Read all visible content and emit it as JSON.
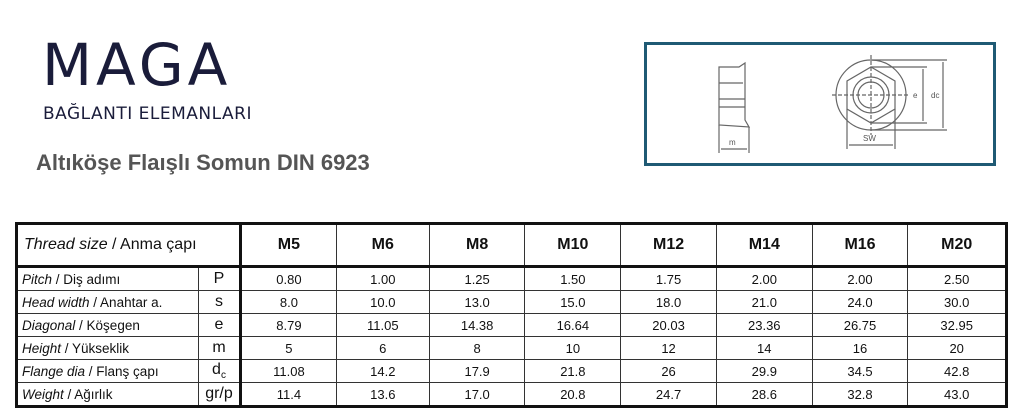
{
  "brand": {
    "name": "MAGA",
    "tagline": "BAĞLANTI ELEMANLARI",
    "brand_color": "#1a1c3a"
  },
  "product_title": "Altıköşe Flaışlı Somun DIN 6923",
  "drawing": {
    "labels": {
      "m": "m",
      "sw": "SW",
      "e": "e",
      "dc": "dc"
    },
    "frame_color": "#1f5a74"
  },
  "table": {
    "header": {
      "label_en": "Thread size",
      "label_tr": " / Anma çapı",
      "sizes": [
        "M5",
        "M6",
        "M8",
        "M10",
        "M12",
        "M14",
        "M16",
        "M20"
      ]
    },
    "rows": [
      {
        "en": "Pitch",
        "tr": " / Diş adımı",
        "sym": "P",
        "values": [
          "0.80",
          "1.00",
          "1.25",
          "1.50",
          "1.75",
          "2.00",
          "2.00",
          "2.50"
        ]
      },
      {
        "en": "Head width",
        "tr": " / Anahtar a.",
        "sym": "s",
        "values": [
          "8.0",
          "10.0",
          "13.0",
          "15.0",
          "18.0",
          "21.0",
          "24.0",
          "30.0"
        ]
      },
      {
        "en": "Diagonal",
        "tr": " / Köşegen",
        "sym": "e",
        "values": [
          "8.79",
          "11.05",
          "14.38",
          "16.64",
          "20.03",
          "23.36",
          "26.75",
          "32.95"
        ]
      },
      {
        "en": "Height",
        "tr": " / Yükseklik",
        "sym": "m",
        "values": [
          "5",
          "6",
          "8",
          "10",
          "12",
          "14",
          "16",
          "20"
        ]
      },
      {
        "en": "Flange dia",
        "tr": " / Flanş çapı",
        "sym": "dc",
        "values": [
          "11.08",
          "14.2",
          "17.9",
          "21.8",
          "26",
          "29.9",
          "34.5",
          "42.8"
        ]
      },
      {
        "en": "Weight",
        "tr": " / Ağırlık",
        "sym": "gr/p",
        "values": [
          "11.4",
          "13.6",
          "17.0",
          "20.8",
          "24.7",
          "28.6",
          "32.8",
          "43.0"
        ]
      }
    ]
  }
}
